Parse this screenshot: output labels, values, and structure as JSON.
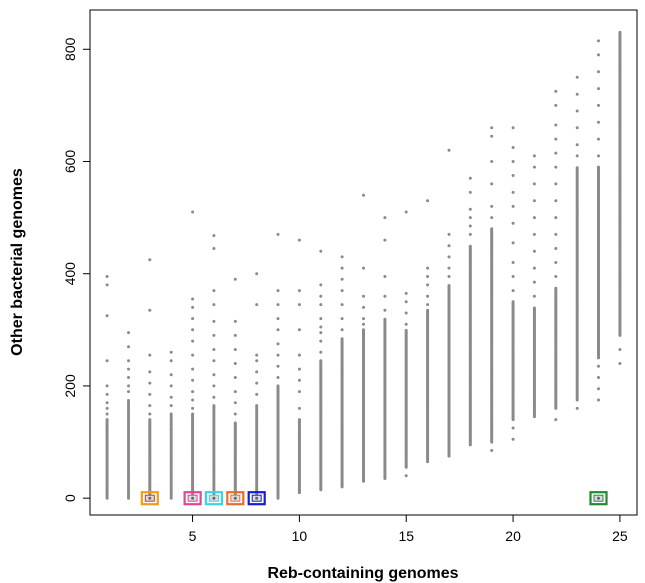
{
  "chart_data": {
    "type": "scatter",
    "title": "",
    "xlabel": "Reb-containing genomes",
    "ylabel": "Other bacterial genomes",
    "xlim": [
      0.2,
      25.8
    ],
    "ylim": [
      -30,
      870
    ],
    "x_ticks": [
      5,
      10,
      15,
      20,
      25
    ],
    "y_ticks": [
      0,
      200,
      400,
      600,
      800
    ],
    "grid": false,
    "legend": "none",
    "point_color": "#8a8a8a",
    "columns": [
      {
        "x": 1,
        "dense_from": 0,
        "dense_to": 140,
        "step": 2,
        "outliers": [
          150,
          160,
          170,
          185,
          200,
          245,
          325,
          380,
          395
        ]
      },
      {
        "x": 2,
        "dense_from": 0,
        "dense_to": 175,
        "step": 3,
        "outliers": [
          190,
          200,
          215,
          230,
          245,
          270,
          295
        ]
      },
      {
        "x": 3,
        "dense_from": 0,
        "dense_to": 140,
        "step": 2,
        "outliers": [
          150,
          165,
          185,
          205,
          225,
          255,
          335,
          425
        ]
      },
      {
        "x": 4,
        "dense_from": 0,
        "dense_to": 150,
        "step": 3,
        "outliers": [
          165,
          180,
          200,
          220,
          245,
          260
        ]
      },
      {
        "x": 5,
        "dense_from": 0,
        "dense_to": 150,
        "step": 2,
        "outliers": [
          160,
          175,
          190,
          210,
          230,
          255,
          280,
          300,
          320,
          340,
          355,
          510
        ]
      },
      {
        "x": 6,
        "dense_from": 0,
        "dense_to": 165,
        "step": 3,
        "outliers": [
          180,
          200,
          220,
          245,
          265,
          290,
          315,
          345,
          370,
          445,
          468
        ]
      },
      {
        "x": 7,
        "dense_from": 0,
        "dense_to": 135,
        "step": 2,
        "outliers": [
          150,
          170,
          190,
          215,
          240,
          265,
          290,
          315,
          390
        ]
      },
      {
        "x": 8,
        "dense_from": 0,
        "dense_to": 165,
        "step": 3,
        "outliers": [
          185,
          205,
          225,
          245,
          255,
          345,
          400
        ]
      },
      {
        "x": 9,
        "dense_from": 0,
        "dense_to": 200,
        "step": 2,
        "outliers": [
          215,
          235,
          255,
          275,
          300,
          320,
          345,
          370,
          470
        ]
      },
      {
        "x": 10,
        "dense_from": 10,
        "dense_to": 140,
        "step": 2,
        "outliers": [
          160,
          190,
          210,
          230,
          255,
          300,
          345,
          370,
          460
        ]
      },
      {
        "x": 11,
        "dense_from": 15,
        "dense_to": 245,
        "step": 2,
        "outliers": [
          260,
          280,
          295,
          305,
          320,
          345,
          360,
          380,
          440
        ]
      },
      {
        "x": 12,
        "dense_from": 20,
        "dense_to": 285,
        "step": 2,
        "outliers": [
          300,
          320,
          345,
          370,
          390,
          410,
          430
        ]
      },
      {
        "x": 13,
        "dense_from": 30,
        "dense_to": 300,
        "step": 2,
        "outliers": [
          310,
          320,
          340,
          360,
          410,
          540
        ]
      },
      {
        "x": 14,
        "dense_from": 35,
        "dense_to": 320,
        "step": 2,
        "outliers": [
          335,
          360,
          395,
          460,
          500
        ]
      },
      {
        "x": 15,
        "dense_from": 55,
        "dense_to": 300,
        "step": 2,
        "outliers": [
          40,
          310,
          330,
          350,
          365,
          510
        ]
      },
      {
        "x": 16,
        "dense_from": 65,
        "dense_to": 335,
        "step": 2,
        "outliers": [
          345,
          360,
          380,
          395,
          410,
          530
        ]
      },
      {
        "x": 17,
        "dense_from": 75,
        "dense_to": 380,
        "step": 2,
        "outliers": [
          395,
          410,
          430,
          450,
          470,
          620
        ]
      },
      {
        "x": 18,
        "dense_from": 95,
        "dense_to": 450,
        "step": 2,
        "outliers": [
          470,
          485,
          500,
          515,
          545,
          570
        ]
      },
      {
        "x": 19,
        "dense_from": 100,
        "dense_to": 480,
        "step": 2,
        "outliers": [
          85,
          500,
          520,
          560,
          600,
          645,
          660
        ]
      },
      {
        "x": 20,
        "dense_from": 140,
        "dense_to": 350,
        "step": 2,
        "outliers": [
          105,
          125,
          370,
          395,
          420,
          455,
          490,
          520,
          545,
          575,
          600,
          625,
          660
        ]
      },
      {
        "x": 21,
        "dense_from": 145,
        "dense_to": 340,
        "step": 2,
        "outliers": [
          360,
          385,
          410,
          440,
          470,
          500,
          530,
          560,
          590,
          610
        ]
      },
      {
        "x": 22,
        "dense_from": 160,
        "dense_to": 375,
        "step": 2,
        "outliers": [
          140,
          395,
          420,
          445,
          470,
          500,
          530,
          560,
          590,
          615,
          640,
          665,
          700,
          725
        ]
      },
      {
        "x": 23,
        "dense_from": 175,
        "dense_to": 590,
        "step": 2,
        "outliers": [
          160,
          610,
          630,
          660,
          690,
          720,
          750
        ]
      },
      {
        "x": 24,
        "dense_from": 250,
        "dense_to": 590,
        "step": 2,
        "outliers": [
          175,
          195,
          215,
          235,
          610,
          640,
          670,
          700,
          730,
          760,
          790,
          815
        ]
      },
      {
        "x": 25,
        "dense_from": 290,
        "dense_to": 830,
        "step": 2,
        "outliers": [
          240,
          265
        ]
      }
    ],
    "highlights": [
      {
        "x": 3,
        "y": 0,
        "color": "#f39c12",
        "inner_color": "#c0392b"
      },
      {
        "x": 5,
        "y": 0,
        "color": "#e84393",
        "inner_color": "#e84393"
      },
      {
        "x": 6,
        "y": 0,
        "color": "#33d6e6",
        "inner_color": "#33d6e6"
      },
      {
        "x": 7,
        "y": 0,
        "color": "#f06a2a",
        "inner_color": "#f06a2a"
      },
      {
        "x": 8,
        "y": 0,
        "color": "#1a1ad4",
        "inner_color": "#1a1ad4"
      },
      {
        "x": 24,
        "y": 0,
        "color": "#1f8a2e",
        "inner_color": "#1f8a2e"
      }
    ]
  }
}
